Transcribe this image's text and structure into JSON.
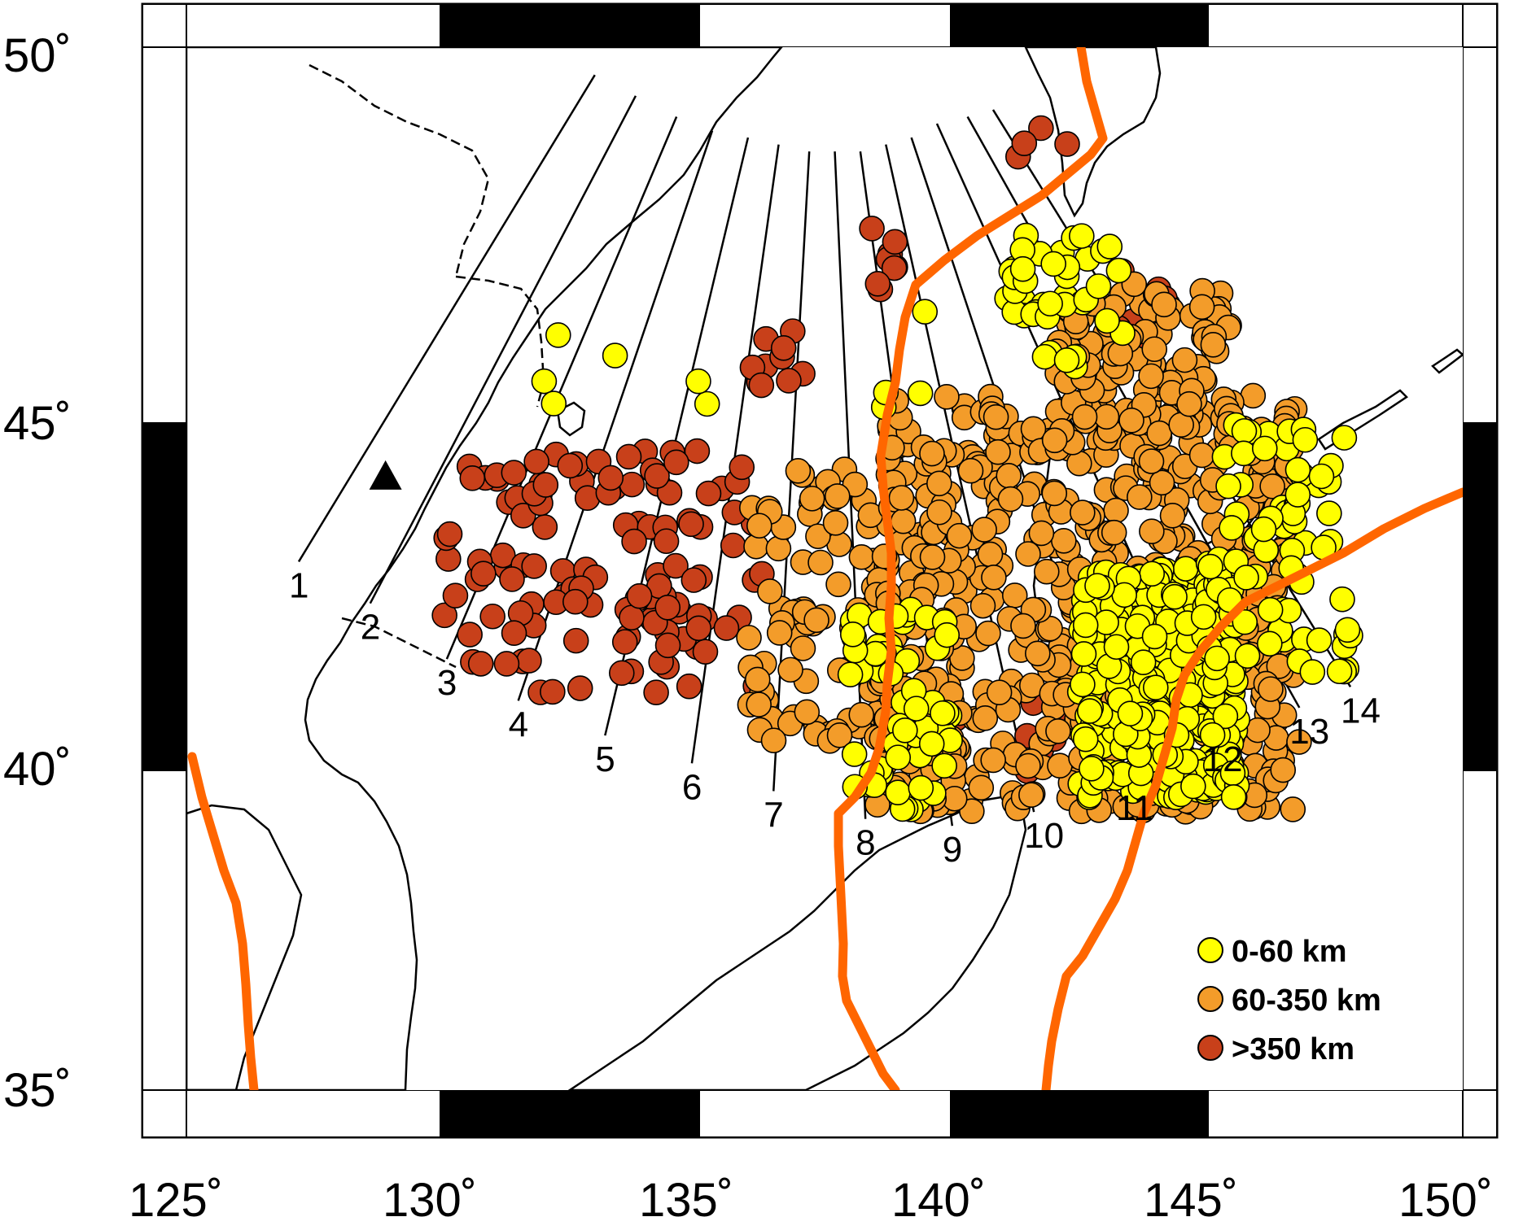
{
  "map": {
    "axes": {
      "lon_ticks": [
        {
          "value": 125,
          "label": "125˚"
        },
        {
          "value": 130,
          "label": "130˚"
        },
        {
          "value": 135,
          "label": "135˚"
        },
        {
          "value": 140,
          "label": "140˚"
        },
        {
          "value": 145,
          "label": "145˚"
        },
        {
          "value": 150,
          "label": "150˚"
        }
      ],
      "lat_ticks": [
        {
          "value": 50,
          "label": "50˚"
        },
        {
          "value": 45,
          "label": "45˚"
        },
        {
          "value": 40,
          "label": "40˚"
        },
        {
          "value": 35,
          "label": "35˚"
        }
      ],
      "lon_range": [
        125,
        150
      ],
      "lat_range": [
        35,
        50
      ]
    },
    "colors": {
      "land": "#c8c8c8",
      "sea": "#ffffff",
      "plate_boundary": "#ff6600",
      "shallow": "#ffff00",
      "intermediate": "#f39c2a",
      "deep": "#c8401a"
    },
    "legend": [
      {
        "label": "0-60 km",
        "class": "shallow"
      },
      {
        "label": "60-350 km",
        "class": "intermediate"
      },
      {
        "label": ">350 km",
        "class": "deep"
      }
    ],
    "profiles": [
      {
        "label": "1",
        "start": [
          127.2,
          42.6
        ],
        "end": [
          133.0,
          49.6
        ]
      },
      {
        "label": "2",
        "start": [
          128.6,
          42.0
        ],
        "end": [
          133.8,
          49.3
        ]
      },
      {
        "label": "3",
        "start": [
          130.1,
          41.2
        ],
        "end": [
          134.6,
          49.0
        ]
      },
      {
        "label": "4",
        "start": [
          131.5,
          40.6
        ],
        "end": [
          135.3,
          48.8
        ]
      },
      {
        "label": "5",
        "start": [
          133.2,
          40.1
        ],
        "end": [
          136.0,
          48.7
        ]
      },
      {
        "label": "6",
        "start": [
          134.9,
          39.7
        ],
        "end": [
          136.6,
          48.6
        ]
      },
      {
        "label": "7",
        "start": [
          136.5,
          39.3
        ],
        "end": [
          137.2,
          48.5
        ]
      },
      {
        "label": "8",
        "start": [
          138.3,
          38.9
        ],
        "end": [
          137.7,
          48.5
        ]
      },
      {
        "label": "9",
        "start": [
          140.0,
          38.8
        ],
        "end": [
          138.2,
          48.5
        ]
      },
      {
        "label": "10",
        "start": [
          141.6,
          39.0
        ],
        "end": [
          138.7,
          48.6
        ]
      },
      {
        "label": "11",
        "start": [
          143.4,
          39.4
        ],
        "end": [
          139.2,
          48.7
        ]
      },
      {
        "label": "12",
        "start": [
          145.1,
          40.1
        ],
        "end": [
          139.7,
          48.9
        ]
      },
      {
        "label": "13",
        "start": [
          146.8,
          40.5
        ],
        "end": [
          140.3,
          49.0
        ]
      },
      {
        "label": "14",
        "start": [
          147.8,
          40.8
        ],
        "end": [
          140.8,
          49.1
        ]
      }
    ],
    "volcano_markers": [
      {
        "lon": 128.9,
        "lat": 43.8
      }
    ]
  }
}
